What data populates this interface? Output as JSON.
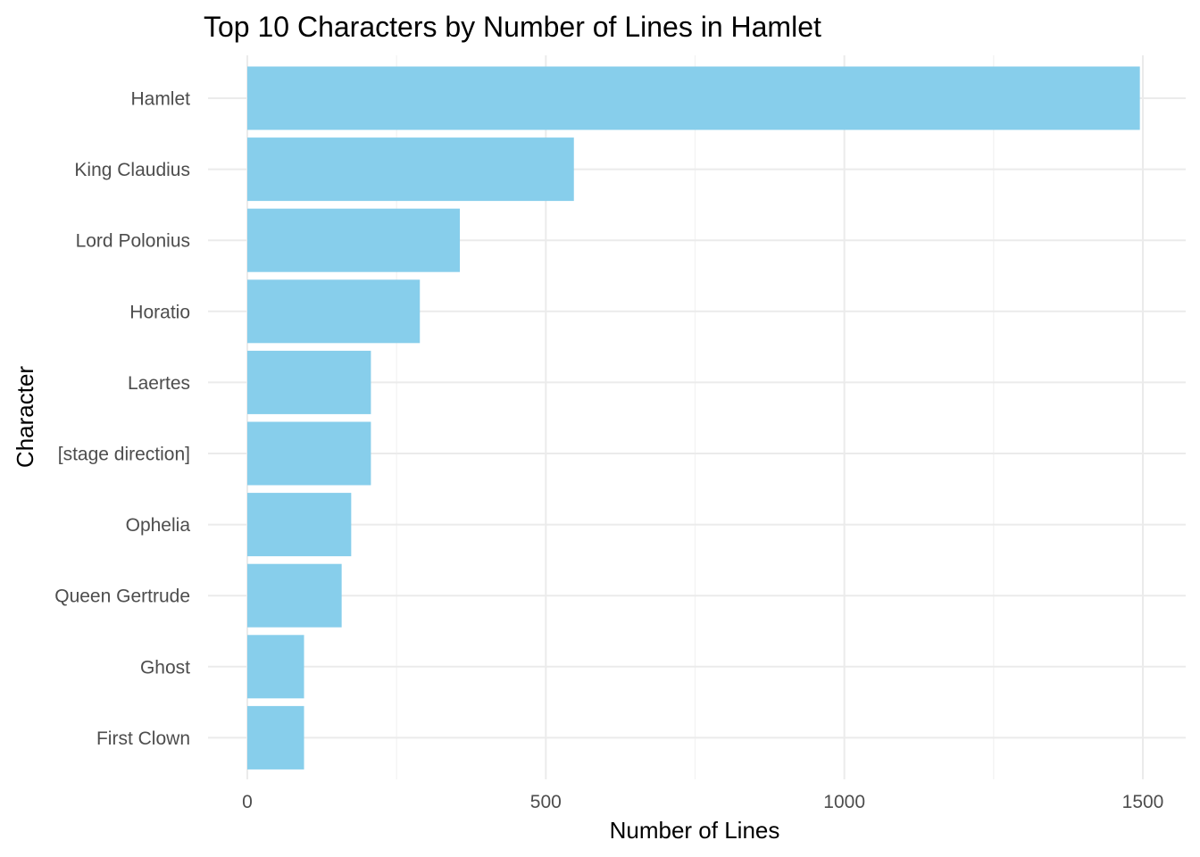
{
  "chart_data": {
    "type": "bar",
    "orientation": "horizontal",
    "title": "Top 10 Characters by Number of Lines in Hamlet",
    "xlabel": "Number of Lines",
    "ylabel": "Character",
    "categories": [
      "Hamlet",
      "King Claudius",
      "Lord Polonius",
      "Horatio",
      "Laertes",
      "[stage direction]",
      "Ophelia",
      "Queen Gertrude",
      "Ghost",
      "First Clown"
    ],
    "values": [
      1495,
      547,
      356,
      289,
      207,
      207,
      174,
      158,
      95,
      95
    ],
    "xlim": [
      0,
      1570
    ],
    "xticks": [
      0,
      500,
      1000,
      1500
    ],
    "xtick_labels": [
      "0",
      "500",
      "1000",
      "1500"
    ],
    "bar_color": "#87CEEB",
    "grid": true,
    "legend": "none"
  }
}
